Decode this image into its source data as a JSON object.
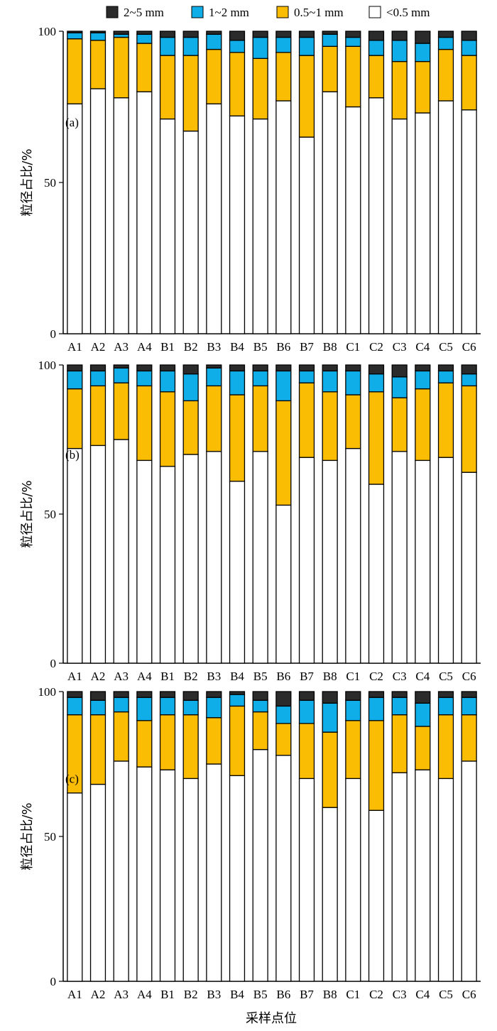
{
  "legend": {
    "items": [
      {
        "label": "2~5 mm",
        "color": "#2b2b2b"
      },
      {
        "label": "1~2 mm",
        "color": "#10aee8"
      },
      {
        "label": "0.5~1 mm",
        "color": "#fbbd04"
      },
      {
        "label": "<0.5 mm",
        "color": "#ffffff"
      }
    ]
  },
  "xlabel": "采样点位",
  "chart_data": [
    {
      "type": "bar",
      "stacked": true,
      "panel_label": "(a)",
      "ylabel": "粒径占比/%",
      "ylim": [
        0,
        100
      ],
      "yticks": [
        0,
        50,
        100
      ],
      "grid": false,
      "categories": [
        "A1",
        "A2",
        "A3",
        "A4",
        "B1",
        "B2",
        "B3",
        "B4",
        "B5",
        "B6",
        "B7",
        "B8",
        "C1",
        "C2",
        "C3",
        "C4",
        "C5",
        "C6"
      ],
      "series": [
        {
          "name": "<0.5 mm",
          "values": [
            76,
            81,
            78,
            80,
            71,
            67,
            76,
            72,
            71,
            77,
            65,
            80,
            75,
            78,
            71,
            73,
            77,
            74
          ]
        },
        {
          "name": "0.5~1 mm",
          "values": [
            21.5,
            16,
            20,
            16,
            21,
            25,
            18,
            21,
            20,
            16,
            27,
            15,
            20,
            14,
            19,
            17,
            17,
            18
          ]
        },
        {
          "name": "1~2 mm",
          "values": [
            2,
            2.5,
            1,
            3,
            6,
            6,
            5,
            4,
            7,
            5,
            6,
            4,
            3,
            5,
            7,
            6,
            4,
            5
          ]
        },
        {
          "name": "2~5 mm",
          "values": [
            0.5,
            0.5,
            1,
            1,
            2,
            2,
            1,
            3,
            2,
            2,
            2,
            1,
            2,
            3,
            3,
            4,
            2,
            3
          ]
        }
      ]
    },
    {
      "type": "bar",
      "stacked": true,
      "panel_label": "(b)",
      "ylabel": "粒径占比/%",
      "ylim": [
        0,
        100
      ],
      "yticks": [
        0,
        50,
        100
      ],
      "grid": false,
      "categories": [
        "A1",
        "A2",
        "A3",
        "A4",
        "B1",
        "B2",
        "B3",
        "B4",
        "B5",
        "B6",
        "B7",
        "B8",
        "C1",
        "C2",
        "C3",
        "C4",
        "C5",
        "C6"
      ],
      "series": [
        {
          "name": "<0.5 mm",
          "values": [
            72,
            73,
            75,
            68,
            66,
            70,
            71,
            61,
            71,
            53,
            69,
            68,
            72,
            60,
            71,
            68,
            69,
            64
          ]
        },
        {
          "name": "0.5~1 mm",
          "values": [
            20,
            20,
            19,
            25,
            25,
            18,
            22,
            29,
            22,
            35,
            25,
            23,
            18,
            31,
            18,
            24,
            25,
            29
          ]
        },
        {
          "name": "1~2 mm",
          "values": [
            6,
            5,
            5,
            5,
            7,
            9,
            6,
            8,
            5,
            10,
            4,
            7,
            8,
            6,
            7,
            6,
            4,
            4
          ]
        },
        {
          "name": "2~5 mm",
          "values": [
            2,
            2,
            1,
            2,
            2,
            3,
            1,
            2,
            2,
            2,
            2,
            2,
            2,
            3,
            4,
            2,
            2,
            3
          ]
        }
      ]
    },
    {
      "type": "bar",
      "stacked": true,
      "panel_label": "(c)",
      "ylabel": "粒径占比/%",
      "ylim": [
        0,
        100
      ],
      "yticks": [
        0,
        50,
        100
      ],
      "grid": false,
      "categories": [
        "A1",
        "A2",
        "A3",
        "A4",
        "B1",
        "B2",
        "B3",
        "B4",
        "B5",
        "B6",
        "B7",
        "B8",
        "C1",
        "C2",
        "C3",
        "C4",
        "C5",
        "C6"
      ],
      "series": [
        {
          "name": "<0.5 mm",
          "values": [
            65,
            68,
            76,
            74,
            73,
            70,
            75,
            71,
            80,
            78,
            70,
            60,
            70,
            59,
            72,
            73,
            70,
            76
          ]
        },
        {
          "name": "0.5~1 mm",
          "values": [
            27,
            24,
            17,
            16,
            19,
            22,
            16,
            24,
            13,
            11,
            19,
            26,
            20,
            31,
            20,
            15,
            22,
            16
          ]
        },
        {
          "name": "1~2 mm",
          "values": [
            6,
            5,
            5,
            8,
            6,
            5,
            7,
            4,
            4,
            6,
            8,
            10,
            7,
            8,
            6,
            8,
            6,
            6
          ]
        },
        {
          "name": "2~5 mm",
          "values": [
            2,
            3,
            2,
            2,
            2,
            3,
            2,
            1,
            3,
            5,
            3,
            4,
            3,
            2,
            2,
            4,
            2,
            2
          ]
        }
      ]
    }
  ]
}
